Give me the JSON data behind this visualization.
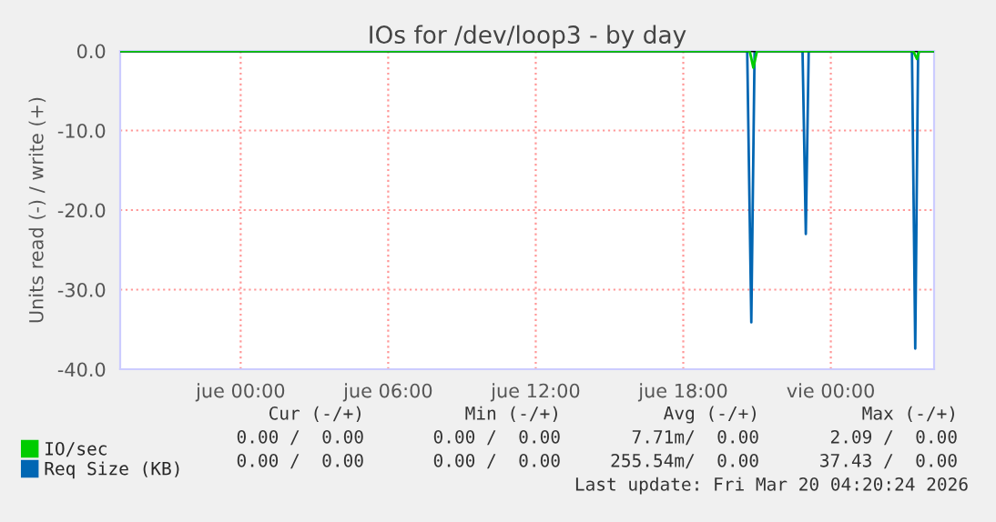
{
  "chart_data": {
    "type": "line",
    "title": "IOs for /dev/loop3 - by day",
    "ylabel": "Units read (-) / write (+)",
    "series": [
      {
        "name": "IO/sec",
        "color": "#00cc00",
        "x": [
          "2026-03-18T19:06",
          "2026-03-19T20:42",
          "2026-03-19T20:51",
          "2026-03-19T21:00",
          "2026-03-20T03:21",
          "2026-03-20T03:30",
          "2026-03-20T03:36",
          "2026-03-20T04:12"
        ],
        "values": [
          0,
          0,
          -2.1,
          0,
          0,
          -1,
          0,
          0
        ]
      },
      {
        "name": "Req Size (KB)",
        "color": "#0066b3",
        "x": [
          "2026-03-18T19:06",
          "2026-03-19T20:36",
          "2026-03-19T20:46",
          "2026-03-19T20:54",
          "2026-03-19T22:51",
          "2026-03-19T22:59",
          "2026-03-19T23:06",
          "2026-03-20T03:18",
          "2026-03-20T03:26",
          "2026-03-20T03:33",
          "2026-03-20T04:12"
        ],
        "values": [
          0,
          0,
          -34.1,
          0,
          0,
          -23,
          0,
          0,
          -37.4,
          0,
          0
        ]
      }
    ],
    "xlim": [
      "2026-03-18T19:06",
      "2026-03-20T04:12"
    ],
    "xticks": [
      {
        "value": "2026-03-19T00:00",
        "label": "jue 00:00"
      },
      {
        "value": "2026-03-19T06:00",
        "label": "jue 06:00"
      },
      {
        "value": "2026-03-19T12:00",
        "label": "jue 12:00"
      },
      {
        "value": "2026-03-19T18:00",
        "label": "jue 18:00"
      },
      {
        "value": "2026-03-20T00:00",
        "label": "vie 00:00"
      }
    ],
    "ylim": [
      -40,
      0
    ],
    "yticks": [
      {
        "value": 0,
        "label": "0.0"
      },
      {
        "value": -10,
        "label": "-10.0"
      },
      {
        "value": -20,
        "label": "-20.0"
      },
      {
        "value": -30,
        "label": "-30.0"
      },
      {
        "value": -40,
        "label": "-40.0"
      }
    ],
    "ref_lines": [
      {
        "axis": "y",
        "value": 0,
        "color": "#000000"
      }
    ],
    "grid": true,
    "legend": "bottom left",
    "marker": "none",
    "line_style": "solid",
    "annotations": [
      "Cur (-/+)",
      "Min (-/+)",
      "Avg (-/+)",
      "Max (-/+)",
      "0.00 /  0.00",
      "0.00 /  0.00",
      "7.71m/  0.00",
      "2.09 /  0.00",
      "0.00 /  0.00",
      "0.00 /  0.00",
      "255.54m/  0.00",
      "37.43 /  0.00",
      "Last update: Fri Mar 20 04:20:24 2026"
    ]
  }
}
